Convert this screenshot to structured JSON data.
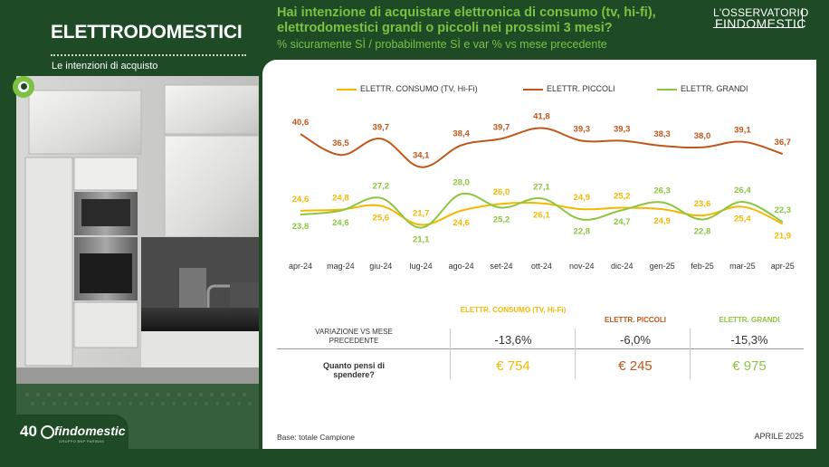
{
  "left": {
    "title": "ELETTRODOMESTICI",
    "subtitle": "Le intenzioni di acquisto",
    "logo_num": "40",
    "logo_name": "findomestic",
    "logo_tagline": "GRUPPO BNP PARIBAS"
  },
  "header": {
    "question": "Hai intenzione di acquistare elettronica di consumo (tv, hi-fi), elettrodomestici grandi o piccoli nei prossimi 3 mesi?",
    "subtitle": "% sicuramente SÌ / probabilmente SÌ e var % vs mese precedente",
    "brand_top": "L'OSSERVATORIO",
    "brand_bottom": "FINDOMESTIC"
  },
  "colors": {
    "consumo": "#f5b800",
    "piccoli": "#c0571a",
    "grandi": "#8cc63f",
    "dark_green": "#1e4a26"
  },
  "chart_data": {
    "type": "line",
    "categories": [
      "apr-24",
      "mag-24",
      "giu-24",
      "lug-24",
      "ago-24",
      "set-24",
      "ott-24",
      "nov-24",
      "dic-24",
      "gen-25",
      "feb-25",
      "mar-25",
      "apr-25"
    ],
    "series": [
      {
        "name": "ELETTR. CONSUMO (TV, Hi-Fi)",
        "key": "consumo",
        "values": [
          24.6,
          24.8,
          25.6,
          21.7,
          24.6,
          26.0,
          26.1,
          24.9,
          25.2,
          24.9,
          23.6,
          25.4,
          21.9
        ]
      },
      {
        "name": "ELETTR. PICCOLI",
        "key": "piccoli",
        "values": [
          40.6,
          36.5,
          39.7,
          34.1,
          38.4,
          39.7,
          41.8,
          39.3,
          39.3,
          38.3,
          38.0,
          39.1,
          36.7
        ]
      },
      {
        "name": "ELETTR. GRANDI",
        "key": "grandi",
        "values": [
          23.8,
          24.6,
          27.2,
          21.1,
          28.0,
          25.2,
          27.1,
          22.8,
          24.7,
          26.3,
          22.8,
          26.4,
          22.3
        ]
      }
    ],
    "value_labels": {
      "consumo": [
        "24,6",
        "24,8",
        "25,6",
        "21,7",
        "24,6",
        "26,0",
        "26,1",
        "24,9",
        "25,2",
        "24,9",
        "23,6",
        "25,4",
        "21,9"
      ],
      "piccoli": [
        "40,6",
        "36,5",
        "39,7",
        "34,1",
        "38,4",
        "39,7",
        "41,8",
        "39,3",
        "39,3",
        "38,3",
        "38,0",
        "39,1",
        "36,7"
      ],
      "grandi": [
        "23,8",
        "24,6",
        "27,2",
        "21,1",
        "28,0",
        "25,2",
        "27,1",
        "22,8",
        "24,7",
        "26,3",
        "22,8",
        "26,4",
        "22,3"
      ]
    }
  },
  "table": {
    "columns": [
      {
        "label": "ELETTR. CONSUMO (TV, Hi-Fi)",
        "key": "consumo"
      },
      {
        "label": "ELETTR. PICCOLI",
        "key": "piccoli"
      },
      {
        "label": "ELETTR. GRANDI",
        "key": "grandi"
      }
    ],
    "row1_label": "VARIAZIONE VS MESE PRECEDENTE",
    "row1_values": [
      "-13,6%",
      "-6,0%",
      "-15,3%"
    ],
    "row2_label": "Quanto pensi di spendere?",
    "row2_values": [
      "€ 754",
      "€ 245",
      "€ 975"
    ]
  },
  "footer": {
    "base": "Base: totale Campione",
    "date": "APRILE 2025"
  }
}
